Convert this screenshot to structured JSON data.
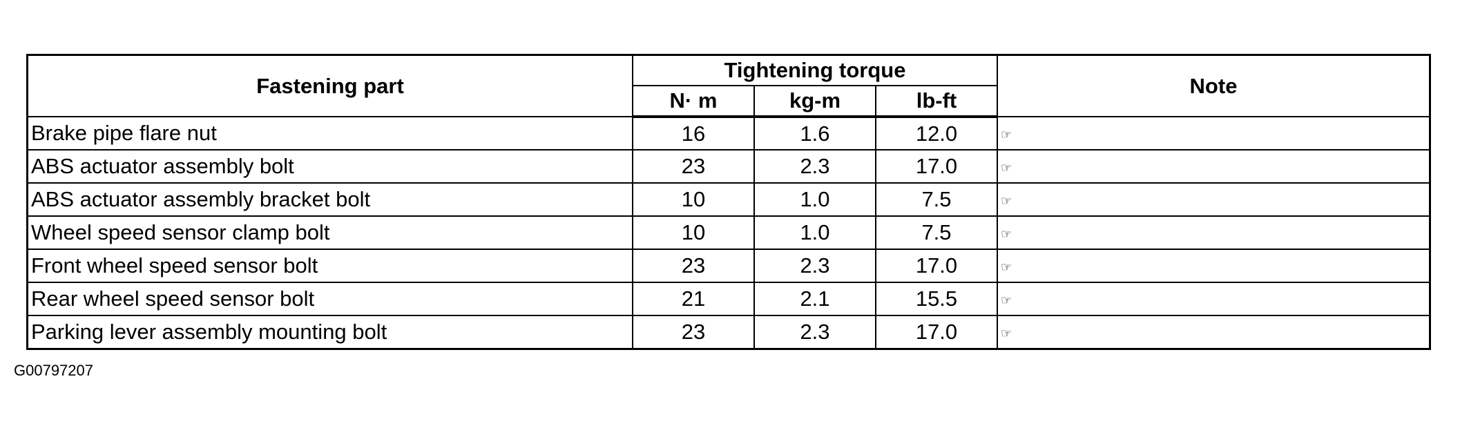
{
  "header": {
    "fastening_part": "Fastening part",
    "tightening_torque": "Tightening torque",
    "units": [
      "N· m",
      "kg-m",
      "lb-ft"
    ],
    "note": "Note"
  },
  "rows": [
    {
      "part": "Brake pipe flare nut",
      "nm": "16",
      "kgm": "1.6",
      "lbft": "12.0",
      "note_icon": "pointing-hand-icon",
      "note": "☞"
    },
    {
      "part": "ABS actuator assembly bolt",
      "nm": "23",
      "kgm": "2.3",
      "lbft": "17.0",
      "note_icon": "pointing-hand-icon",
      "note": "☞"
    },
    {
      "part": "ABS actuator assembly bracket bolt",
      "nm": "10",
      "kgm": "1.0",
      "lbft": "7.5",
      "note_icon": "pointing-hand-icon",
      "note": "☞"
    },
    {
      "part": "Wheel speed sensor clamp bolt",
      "nm": "10",
      "kgm": "1.0",
      "lbft": "7.5",
      "note_icon": "pointing-hand-icon",
      "note": "☞"
    },
    {
      "part": "Front wheel speed sensor bolt",
      "nm": "23",
      "kgm": "2.3",
      "lbft": "17.0",
      "note_icon": "pointing-hand-icon",
      "note": "☞"
    },
    {
      "part": "Rear wheel speed sensor bolt",
      "nm": "21",
      "kgm": "2.1",
      "lbft": "15.5",
      "note_icon": "pointing-hand-icon",
      "note": "☞"
    },
    {
      "part": "Parking lever assembly mounting bolt",
      "nm": "23",
      "kgm": "2.3",
      "lbft": "17.0",
      "note_icon": "pointing-hand-icon",
      "note": "☞"
    }
  ],
  "figure_code": "G00797207"
}
